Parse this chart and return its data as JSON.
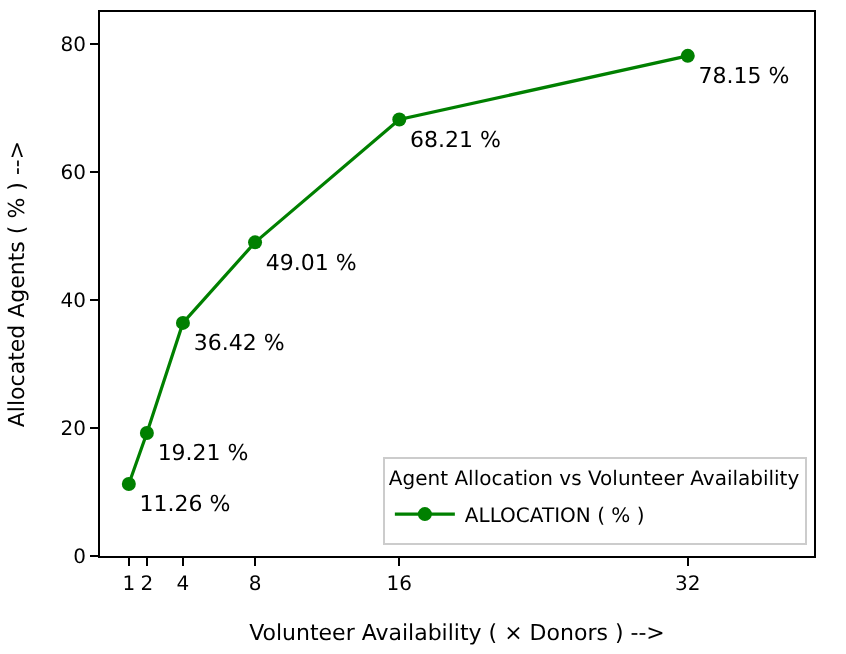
{
  "chart_data": {
    "type": "line",
    "xlabel": "Volunteer Availability ( × Donors ) -->",
    "ylabel": "Allocated Agents ( % ) -->",
    "legend_title": "Agent Allocation vs Volunteer Availability",
    "x": [
      1,
      2,
      4,
      8,
      16,
      32
    ],
    "series": [
      {
        "name": "ALLOCATION ( % )",
        "color": "#008000",
        "values": [
          11.26,
          19.21,
          36.42,
          49.01,
          68.21,
          78.15
        ],
        "value_labels": [
          "11.26 %",
          "19.21 %",
          "36.42 %",
          "49.01 %",
          "68.21 %",
          "78.15 %"
        ]
      }
    ],
    "xlim": [
      -0.6,
      39
    ],
    "xticks": [
      1,
      2,
      4,
      8,
      16,
      32
    ],
    "ylim": [
      0,
      85
    ],
    "yticks": [
      0,
      20,
      40,
      60,
      80
    ],
    "legend": "bottom right",
    "marker": "circle",
    "line_style": "solid"
  }
}
